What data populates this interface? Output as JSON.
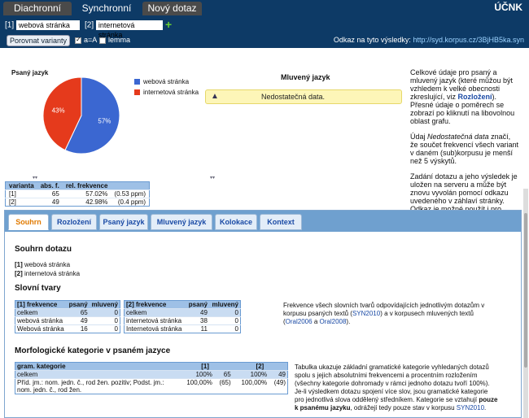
{
  "tabs": [
    "Diachronní",
    "Synchronní",
    "Nový dotaz"
  ],
  "brand": "ÚČNK",
  "query": {
    "label1": "[1]",
    "value1": "webová stránka",
    "label2": "[2]",
    "value2": "internetová stránka"
  },
  "controls": {
    "compare": "Porovnat varianty",
    "case": "a=A",
    "lemma": "lemma"
  },
  "link": {
    "label": "Odkaz na tyto výsledky:",
    "url": "http://syd.korpus.cz/3BjHB5ka.syn"
  },
  "written": {
    "title": "Psaný jazyk"
  },
  "chart_data": {
    "type": "pie",
    "title": "Psaný jazyk",
    "slices": [
      {
        "label": "webová stránka",
        "value": 57,
        "color": "#3b67d1"
      },
      {
        "label": "internetová stránka",
        "value": 43,
        "color": "#e53a1c"
      }
    ]
  },
  "spoken": {
    "title": "Mluvený jazyk",
    "warning": "Nedostatečná data."
  },
  "info": {
    "p1a": "Celkové údaje pro psaný a mluvený jazyk (které můžou být vzhledem k velké obecnosti zkreslující, viz ",
    "p1link": "Rozložení",
    "p1b": "). Přesné údaje o poměrech se zobrazí po kliknutí na libovolnou oblast grafu.",
    "p2a": "Údaj ",
    "p2i": "Nedostatečná data",
    "p2b": " značí, že součet frekvencí všech variant v daném (sub)korpusu je menší než 5 výskytů.",
    "p3": "Zadání dotazu a jeho výsledek je uložen na serveru a může být znovu vyvolán pomocí odkazu uvedeného v záhlaví stránky. Odkaz je možné použít i pro citační účely."
  },
  "freqtable": {
    "headers": [
      "varianta",
      "abs. f.",
      "rel. frekvence",
      ""
    ],
    "rows": [
      [
        "[1]",
        "65",
        "57.02%",
        "(0.53 ppm)"
      ],
      [
        "[2]",
        "49",
        "42.98%",
        "(0.4 ppm)"
      ]
    ]
  },
  "paneltabs": [
    "Souhrn",
    "Rozložení",
    "Psaný jazyk",
    "Mluvený jazyk",
    "Kolokace",
    "Kontext"
  ],
  "summary": {
    "title": "Souhrn dotazu",
    "l1": "[1]",
    "v1": " webová stránka",
    "l2": "[2]",
    "v2": " internetová stránka"
  },
  "slovni": {
    "title": "Slovní tvary",
    "t1": {
      "h": [
        "[1] frekvence",
        "psaný",
        "mluvený"
      ],
      "rows": [
        [
          "celkem",
          "65",
          "0"
        ],
        [
          "webová stránka",
          "49",
          "0"
        ],
        [
          "Webová stránka",
          "16",
          "0"
        ]
      ]
    },
    "t2": {
      "h": [
        "[2] frekvence",
        "psaný",
        "mluvený"
      ],
      "rows": [
        [
          "celkem",
          "49",
          "0"
        ],
        [
          "internetová stránka",
          "38",
          "0"
        ],
        [
          "Internetová stránka",
          "11",
          "0"
        ]
      ]
    },
    "desc1": "Frekvence všech slovních tvarů odpovídajících jednotlivým dotazům v korpusu psaných textů (",
    "desc2": "SYN2010",
    "desc3": ") a v korpusech mluvených textů (",
    "desc4": "Oral2006",
    "desc5": " a ",
    "desc6": "Oral2008",
    "desc7": ")."
  },
  "morf": {
    "title": "Morfologické kategorie v psaném jazyce",
    "h": [
      "gram. kategorie",
      "[1]",
      "[2]"
    ],
    "row1": [
      "celkem",
      "100%",
      "65",
      "100%",
      "49"
    ],
    "row2a": "Příd. jm.: nom. jedn. č., rod žen. pozitiv; Podst. jm.: nom. jedn. č., rod žen.",
    "row2": [
      "100,00%",
      "(65)",
      "100,00%",
      "(49)"
    ],
    "desc": "Tabulka ukazuje základní gramatické kategorie vyhledaných dotazů spolu s jejich absolutními frekvencemi a procentním rozložením (všechny kategorie dohromady v rámci jednoho dotazu tvoří 100%). Je-li výsledkem dotazu spojení více slov, jsou gramatické kategorie pro jednotlivá slova oddělený středníkem. Kategorie se vztahují ",
    "descb": "pouze k psanému jazyku",
    "desce": ", odrážejí tedy pouze stav v korpusu ",
    "desclink": "SYN2010",
    "descend": "."
  }
}
